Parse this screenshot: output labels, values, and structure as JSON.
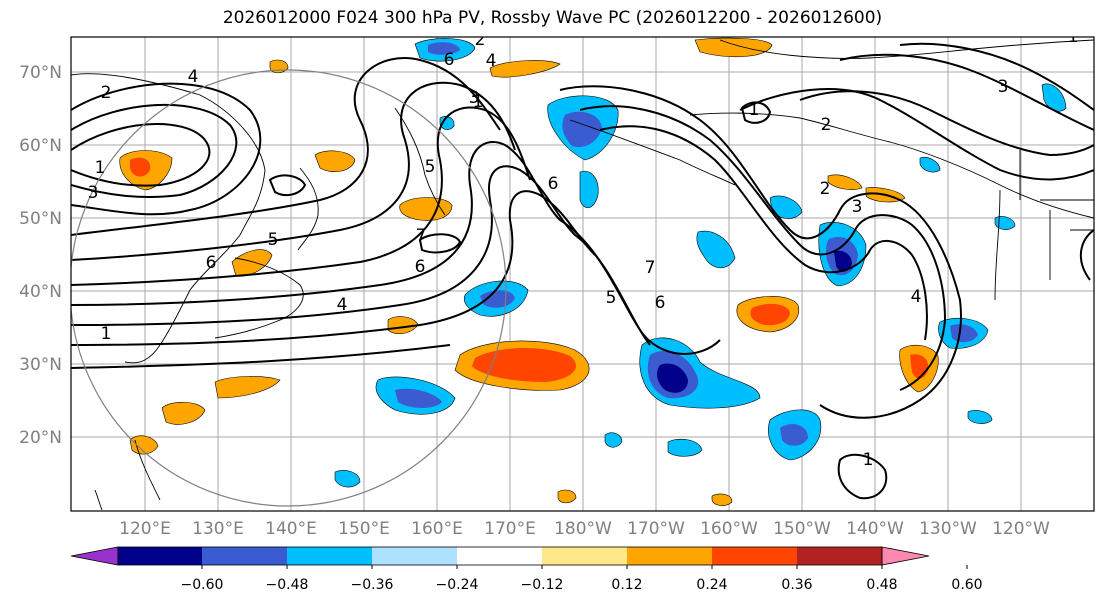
{
  "title": "2026012000 F024 300 hPa PV, Rossby Wave PC (2026012200 - 2026012600)",
  "lat_labels": [
    "70°N",
    "60°N",
    "50°N",
    "40°N",
    "30°N",
    "20°N"
  ],
  "lon_labels": [
    "120°E",
    "130°E",
    "140°E",
    "150°E",
    "160°E",
    "170°E",
    "180°W",
    "170°W",
    "160°W",
    "150°W",
    "140°W",
    "130°W",
    "120°W"
  ],
  "colorbar": {
    "ticks": [
      "−0.60",
      "−0.48",
      "−0.36",
      "−0.24",
      "−0.12",
      "0.12",
      "0.24",
      "0.36",
      "0.48",
      "0.60"
    ],
    "colors": [
      "#9932cc",
      "#00008b",
      "#3b5bd0",
      "#00bfff",
      "#aee0ff",
      "#ffffff",
      "#ffe88a",
      "#ffa500",
      "#ff4500",
      "#b22222",
      "#ff88b0"
    ]
  },
  "contour_labels": [
    "2",
    "1",
    "3",
    "4",
    "5",
    "6",
    "7",
    "6",
    "5",
    "4",
    "3",
    "2",
    "1",
    "1",
    "2",
    "3",
    "4",
    "1",
    "2",
    "6",
    "4",
    "1",
    "6",
    "5",
    "7",
    "6",
    "3",
    "1"
  ]
}
